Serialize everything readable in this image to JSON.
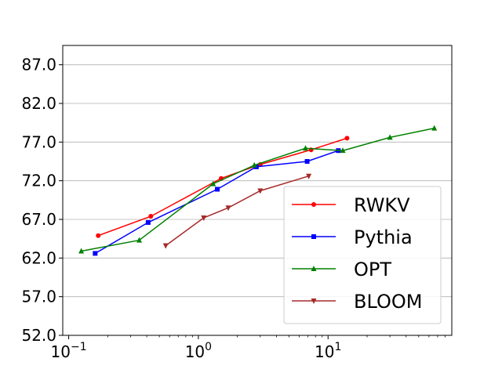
{
  "chart_data": {
    "type": "line",
    "x_scale": "log",
    "xlim": [
      0.09,
      90
    ],
    "ylim": [
      52,
      89.5
    ],
    "y_ticks": [
      52.0,
      57.0,
      62.0,
      67.0,
      72.0,
      77.0,
      82.0,
      87.0
    ],
    "y_tick_labels": [
      "52.0",
      "57.0",
      "62.0",
      "67.0",
      "72.0",
      "77.0",
      "82.0",
      "87.0"
    ],
    "x_ticks": [
      0.1,
      1,
      10
    ],
    "x_tick_labels": [
      {
        "base": "10",
        "exp": "−1"
      },
      {
        "base": "10",
        "exp": "0"
      },
      {
        "base": "10",
        "exp": "1"
      }
    ],
    "grid": "horizontal",
    "legend_position": "lower-right",
    "series": [
      {
        "name": "RWKV",
        "color": "#ff0000",
        "marker": "circle",
        "x": [
          0.169,
          0.43,
          1.5,
          3.0,
          7.4,
          14
        ],
        "y": [
          64.9,
          67.4,
          72.3,
          74.1,
          76.0,
          77.5
        ]
      },
      {
        "name": "Pythia",
        "color": "#0000ff",
        "marker": "square",
        "x": [
          0.16,
          0.41,
          1.4,
          2.8,
          6.9,
          12
        ],
        "y": [
          62.6,
          66.6,
          70.9,
          73.8,
          74.5,
          75.9
        ]
      },
      {
        "name": "OPT",
        "color": "#008000",
        "marker": "triangle-up",
        "x": [
          0.125,
          0.35,
          1.3,
          2.7,
          6.7,
          13,
          30,
          66
        ],
        "y": [
          62.9,
          64.3,
          71.6,
          74.0,
          76.2,
          75.9,
          77.6,
          78.8
        ]
      },
      {
        "name": "BLOOM",
        "color": "#a52a2a",
        "marker": "triangle-down",
        "x": [
          0.56,
          1.1,
          1.7,
          3.0,
          7.1
        ],
        "y": [
          63.6,
          67.2,
          68.5,
          70.7,
          72.6
        ]
      }
    ]
  }
}
